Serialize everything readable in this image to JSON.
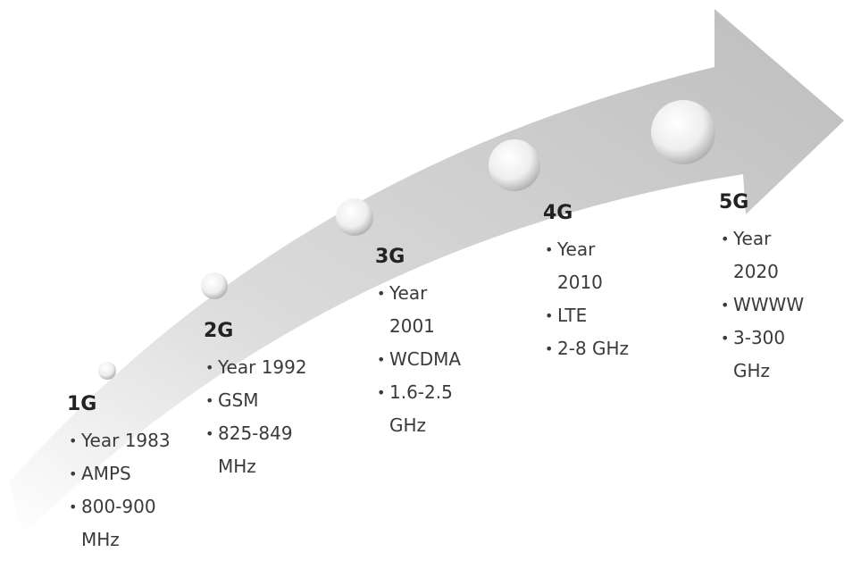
{
  "generations": [
    {
      "label": "1G",
      "bullets": [
        "Year 1983",
        "AMPS",
        "800-900\nMHz"
      ]
    },
    {
      "label": "2G",
      "bullets": [
        "Year 1992",
        "GSM",
        "825-849\nMHz"
      ]
    },
    {
      "label": "3G",
      "bullets": [
        "Year\n2001",
        "WCDMA",
        "1.6-2.5\nGHz"
      ]
    },
    {
      "label": "4G",
      "bullets": [
        "Year\n2010",
        "LTE",
        "2-8 GHz"
      ]
    },
    {
      "label": "5G",
      "bullets": [
        "Year\n2020",
        "WWWW",
        "3-300\nGHz"
      ]
    }
  ]
}
